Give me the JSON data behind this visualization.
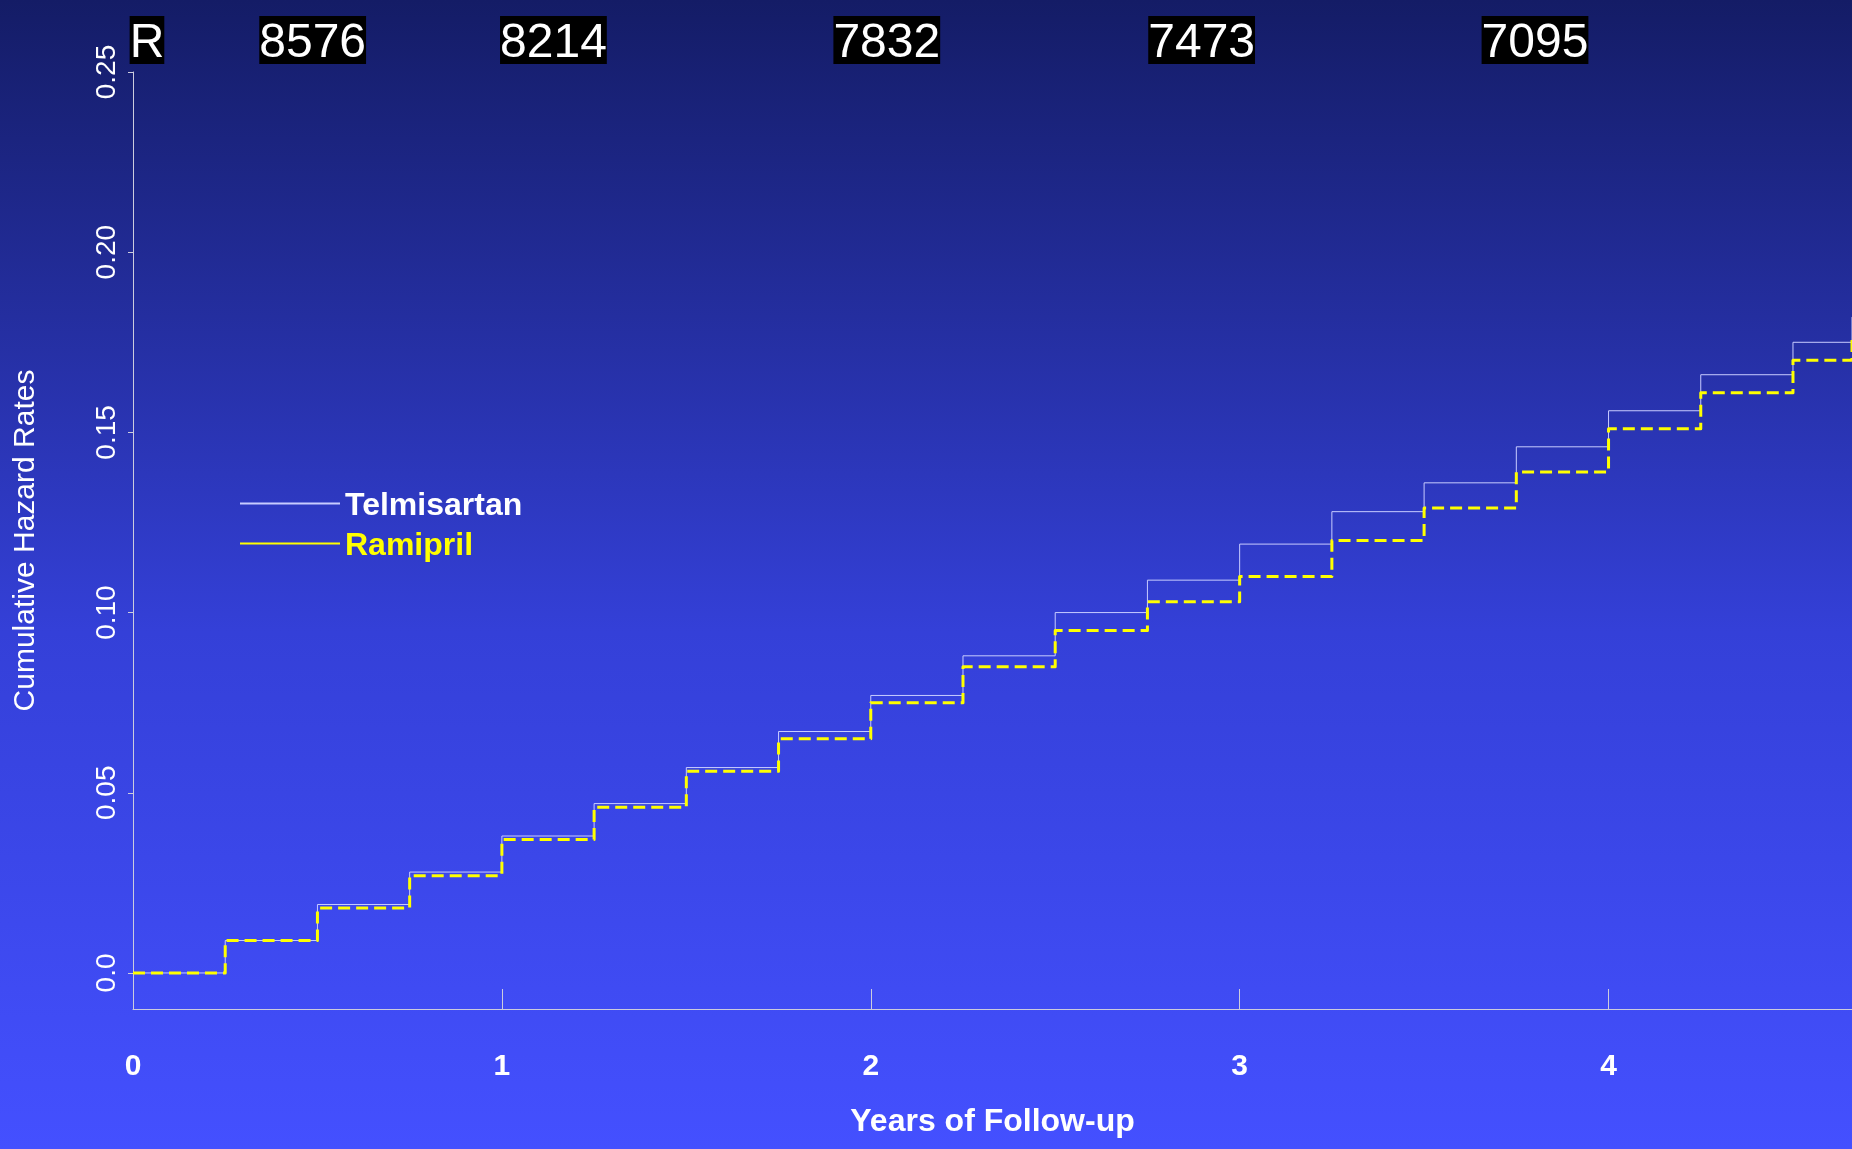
{
  "chart_data": {
    "type": "step",
    "xlabel": "Years of Follow-up",
    "ylabel": "Cumulative Hazard Rates",
    "annotations": [
      "R",
      "8576",
      "8214",
      "7832",
      "7473",
      "7095"
    ],
    "x": [
      0,
      0.25,
      0.5,
      0.75,
      1,
      1.25,
      1.5,
      1.75,
      2,
      2.25,
      2.5,
      2.75,
      3,
      3.25,
      3.5,
      3.75,
      4,
      4.25,
      4.5,
      4.66
    ],
    "series": [
      {
        "name": "Telmisartan",
        "color": "#c8ccff",
        "line_style": "solid",
        "values": [
          0,
          0.009,
          0.019,
          0.028,
          0.038,
          0.047,
          0.057,
          0.067,
          0.077,
          0.088,
          0.1,
          0.109,
          0.119,
          0.128,
          0.136,
          0.146,
          0.156,
          0.166,
          0.175,
          0.182
        ]
      },
      {
        "name": "Ramipril",
        "color": "#ffff00",
        "line_style": "dashed",
        "values": [
          0,
          0.009,
          0.018,
          0.027,
          0.037,
          0.046,
          0.056,
          0.065,
          0.075,
          0.085,
          0.095,
          0.103,
          0.11,
          0.12,
          0.129,
          0.139,
          0.151,
          0.161,
          0.17,
          0.176
        ]
      }
    ],
    "xlim": [
      0,
      4.66
    ],
    "xticks": [
      0,
      1,
      2,
      3,
      4
    ],
    "ylim": [
      -0.01,
      0.25
    ],
    "yticks": [
      {
        "value": 0,
        "label": "0.0"
      },
      0.05,
      {
        "value": 0.1,
        "label": "0.10"
      },
      0.15,
      {
        "value": 0.2,
        "label": "0.20"
      },
      0.25
    ],
    "grid": false,
    "legend": "left",
    "marker": "none"
  }
}
